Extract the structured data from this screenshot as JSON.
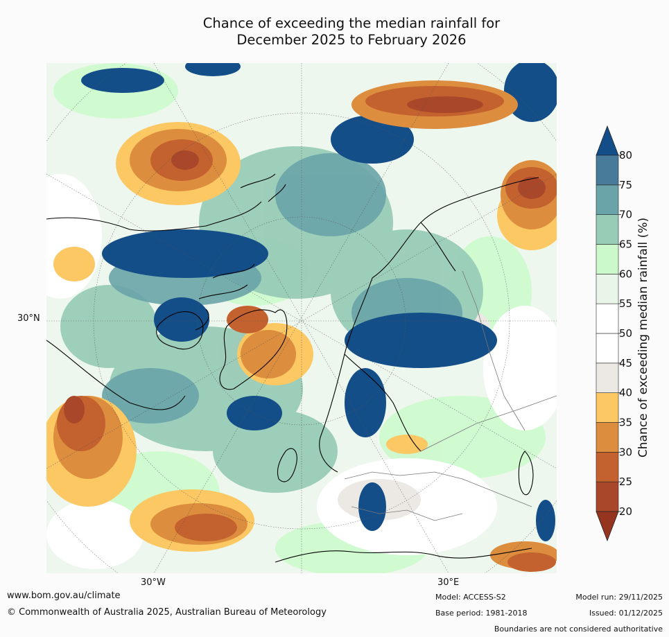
{
  "title": {
    "line1": "Chance of exceeding the median rainfall for",
    "line2": "December 2025 to February 2026"
  },
  "map": {
    "projection_labels": {
      "west": "30°W",
      "east": "30°E",
      "lat": "30°N"
    }
  },
  "legend": {
    "title": "Chance of exceeding median rainfall (%)",
    "ticks": [
      "20",
      "25",
      "30",
      "35",
      "40",
      "45",
      "50",
      "55",
      "60",
      "65",
      "70",
      "75",
      "80"
    ],
    "colors": [
      "#953520",
      "#a9472a",
      "#c4622f",
      "#dd8d3e",
      "#fbc864",
      "#ece9e5",
      "#ffffff",
      "#ffffff",
      "#eaf5ea",
      "#ccf9cc",
      "#99ccb7",
      "#6aa4a8",
      "#487a9a",
      "#134e89"
    ]
  },
  "footer": {
    "url": "www.bom.gov.au/climate",
    "copyright": "© Commonwealth of Australia 2025, Australian Bureau of Meteorology",
    "model": "Model: ACCESS-S2",
    "base_period": "Base period: 1981-2018",
    "model_run": "Model run: 29/11/2025",
    "issued": "Issued: 01/12/2025",
    "disclaimer": "Boundaries are not considered authoritative"
  }
}
